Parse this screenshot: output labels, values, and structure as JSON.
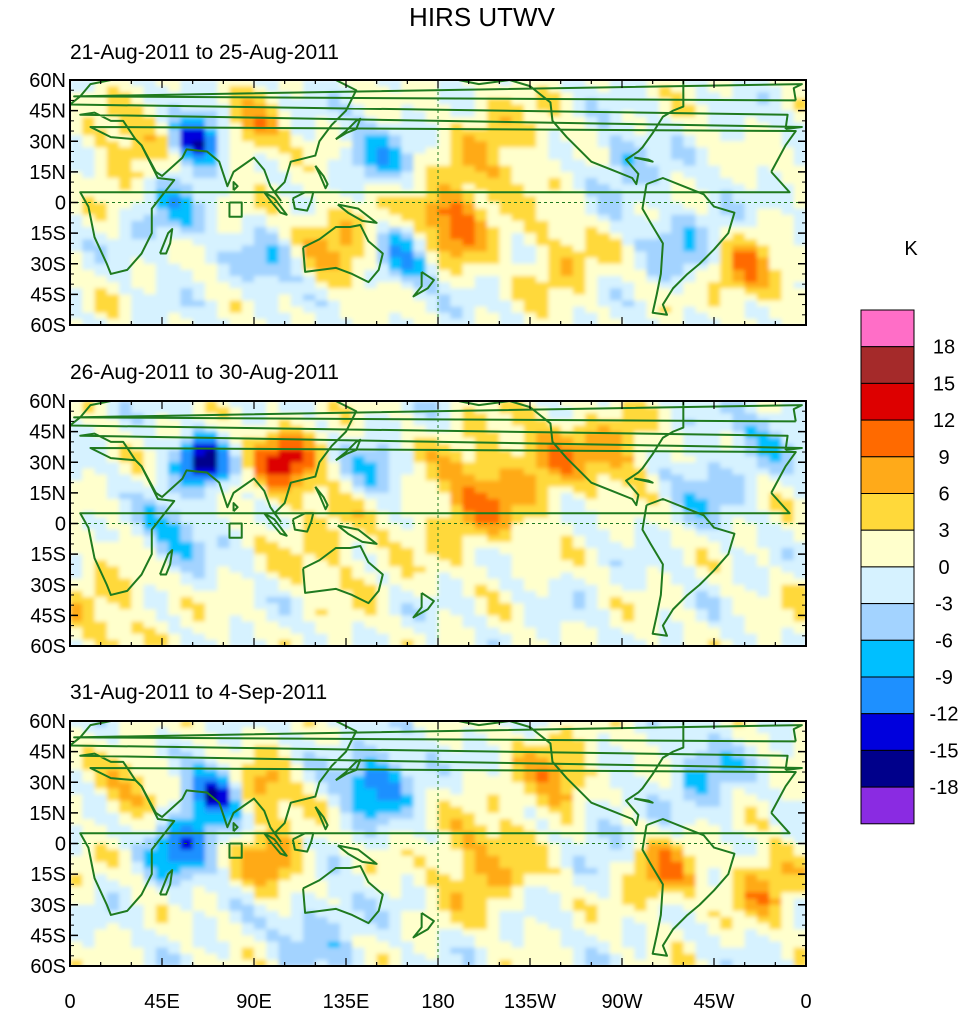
{
  "title": "HIRS UTWV",
  "colorbar": {
    "unit": "K",
    "labels": [
      "18",
      "15",
      "12",
      "9",
      "6",
      "3",
      "0",
      "-3",
      "-6",
      "-9",
      "-12",
      "-15",
      "-18"
    ],
    "colors": [
      "#ff6ec7",
      "#a52a2a",
      "#dd0000",
      "#ff6a00",
      "#ffaa19",
      "#ffd93a",
      "#ffffcc",
      "#d6f2ff",
      "#a3d3ff",
      "#00bfff",
      "#1e90ff",
      "#0000dd",
      "#00008b",
      "#8a2be2"
    ]
  },
  "chart_data": [
    {
      "type": "heatmap",
      "title": "21-Aug-2011 to 25-Aug-2011",
      "xlabel": "",
      "ylabel": "",
      "xlim": [
        0,
        360
      ],
      "ylim": [
        -60,
        60
      ],
      "anomalies": [
        {
          "lon": 62,
          "lat": 30,
          "r": 9,
          "value": -16
        },
        {
          "lon": 90,
          "lat": 35,
          "r": 10,
          "value": 8
        },
        {
          "lon": 185,
          "lat": -10,
          "r": 14,
          "value": 12
        },
        {
          "lon": 165,
          "lat": -25,
          "r": 12,
          "value": -10
        },
        {
          "lon": 130,
          "lat": -20,
          "r": 18,
          "value": 6
        },
        {
          "lon": 150,
          "lat": 22,
          "r": 12,
          "value": -7
        },
        {
          "lon": 210,
          "lat": 28,
          "r": 18,
          "value": 5
        },
        {
          "lon": 30,
          "lat": 28,
          "r": 14,
          "value": 6
        },
        {
          "lon": 50,
          "lat": -5,
          "r": 12,
          "value": -6
        },
        {
          "lon": 100,
          "lat": -30,
          "r": 12,
          "value": -6
        },
        {
          "lon": 270,
          "lat": 20,
          "r": 10,
          "value": -6
        },
        {
          "lon": 330,
          "lat": -35,
          "r": 12,
          "value": 9
        },
        {
          "lon": 300,
          "lat": -20,
          "r": 15,
          "value": -5
        },
        {
          "lon": 240,
          "lat": -30,
          "r": 15,
          "value": 5
        }
      ]
    },
    {
      "type": "heatmap",
      "title": "26-Aug-2011 to 30-Aug-2011",
      "xlabel": "",
      "ylabel": "",
      "xlim": [
        0,
        360
      ],
      "ylim": [
        -60,
        60
      ],
      "anomalies": [
        {
          "lon": 65,
          "lat": 30,
          "r": 9,
          "value": -16
        },
        {
          "lon": 105,
          "lat": 30,
          "r": 12,
          "value": 12
        },
        {
          "lon": 200,
          "lat": 15,
          "r": 20,
          "value": 8
        },
        {
          "lon": 240,
          "lat": 35,
          "r": 15,
          "value": 6
        },
        {
          "lon": 50,
          "lat": -5,
          "r": 12,
          "value": -7
        },
        {
          "lon": 150,
          "lat": 25,
          "r": 10,
          "value": -7
        },
        {
          "lon": 270,
          "lat": 35,
          "r": 12,
          "value": 7
        },
        {
          "lon": 310,
          "lat": 20,
          "r": 14,
          "value": -5
        },
        {
          "lon": 130,
          "lat": -10,
          "r": 20,
          "value": 4
        },
        {
          "lon": 20,
          "lat": -40,
          "r": 20,
          "value": 4
        },
        {
          "lon": 340,
          "lat": 45,
          "r": 10,
          "value": -6
        }
      ]
    },
    {
      "type": "heatmap",
      "title": "31-Aug-2011 to 4-Sep-2011",
      "xlabel": "",
      "ylabel": "",
      "xlim": [
        0,
        360
      ],
      "ylim": [
        -60,
        60
      ],
      "anomalies": [
        {
          "lon": 70,
          "lat": 25,
          "r": 9,
          "value": -14
        },
        {
          "lon": 55,
          "lat": 0,
          "r": 12,
          "value": -11
        },
        {
          "lon": 95,
          "lat": 28,
          "r": 10,
          "value": 8
        },
        {
          "lon": 100,
          "lat": -10,
          "r": 12,
          "value": 9
        },
        {
          "lon": 150,
          "lat": 30,
          "r": 12,
          "value": -11
        },
        {
          "lon": 240,
          "lat": 30,
          "r": 15,
          "value": 8
        },
        {
          "lon": 200,
          "lat": -10,
          "r": 16,
          "value": 7
        },
        {
          "lon": 290,
          "lat": -15,
          "r": 12,
          "value": 8
        },
        {
          "lon": 340,
          "lat": -20,
          "r": 12,
          "value": 8
        },
        {
          "lon": 310,
          "lat": 35,
          "r": 12,
          "value": -7
        },
        {
          "lon": 30,
          "lat": 25,
          "r": 12,
          "value": 6
        },
        {
          "lon": 260,
          "lat": 15,
          "r": 12,
          "value": -5
        },
        {
          "lon": 120,
          "lat": -40,
          "r": 15,
          "value": -5
        }
      ]
    }
  ],
  "axes": {
    "lat_labels": [
      "60N",
      "45N",
      "30N",
      "15N",
      "0",
      "15S",
      "30S",
      "45S",
      "60S"
    ],
    "lon_labels": [
      "0",
      "45E",
      "90E",
      "135E",
      "180",
      "135W",
      "90W",
      "45W",
      "0"
    ]
  }
}
